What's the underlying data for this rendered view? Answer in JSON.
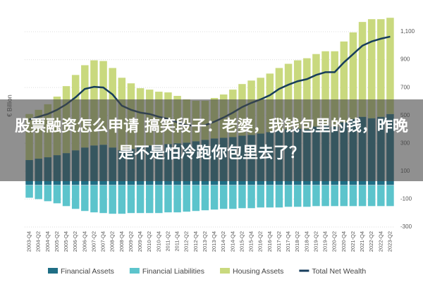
{
  "chart_data": {
    "type": "bar",
    "y_label": "€ Billion",
    "categories": [
      "2003-Q4",
      "2004-Q2",
      "2004-Q4",
      "2005-Q2",
      "2005-Q4",
      "2006-Q2",
      "2006-Q4",
      "2007-Q2",
      "2007-Q4",
      "2008-Q2",
      "2008-Q4",
      "2009-Q2",
      "2009-Q4",
      "2010-Q2",
      "2010-Q4",
      "2011-Q2",
      "2011-Q4",
      "2012-Q2",
      "2012-Q4",
      "2013-Q2",
      "2013-Q4",
      "2014-Q2",
      "2014-Q4",
      "2015-Q2",
      "2015-Q4",
      "2016-Q2",
      "2016-Q4",
      "2017-Q2",
      "2017-Q4",
      "2018-Q2",
      "2018-Q4",
      "2019-Q2",
      "2019-Q4",
      "2020-Q2",
      "2020-Q4",
      "2021-Q2",
      "2021-Q4",
      "2022-Q2",
      "2022-Q4",
      "2023-Q2"
    ],
    "series": [
      {
        "name": "Financial Assets",
        "color": "#1f6e85",
        "type": "bar",
        "values": [
          180,
          190,
          200,
          215,
          230,
          250,
          270,
          285,
          290,
          270,
          250,
          260,
          275,
          285,
          290,
          295,
          300,
          305,
          315,
          325,
          335,
          340,
          345,
          355,
          360,
          370,
          380,
          390,
          400,
          405,
          400,
          420,
          430,
          420,
          450,
          475,
          490,
          480,
          490,
          510
        ]
      },
      {
        "name": "Financial Liabilities",
        "color": "#5cc4cc",
        "type": "bar",
        "values": [
          -90,
          -100,
          -115,
          -130,
          -150,
          -170,
          -185,
          -195,
          -200,
          -205,
          -205,
          -200,
          -200,
          -200,
          -200,
          -195,
          -195,
          -190,
          -185,
          -180,
          -175,
          -170,
          -170,
          -165,
          -165,
          -160,
          -160,
          -160,
          -155,
          -155,
          -155,
          -150,
          -150,
          -150,
          -150,
          -150,
          -150,
          -150,
          -150,
          -150
        ]
      },
      {
        "name": "Housing Assets",
        "color": "#c9d97e",
        "type": "bar",
        "values": [
          330,
          350,
          380,
          420,
          480,
          540,
          590,
          610,
          600,
          570,
          520,
          470,
          420,
          400,
          380,
          370,
          340,
          310,
          290,
          280,
          290,
          310,
          340,
          370,
          390,
          400,
          420,
          450,
          470,
          490,
          510,
          520,
          530,
          540,
          580,
          620,
          680,
          710,
          700,
          690
        ]
      },
      {
        "name": "Total Net Wealth",
        "color": "#173d5c",
        "type": "line",
        "values": [
          470,
          490,
          510,
          540,
          580,
          630,
          690,
          705,
          700,
          650,
          570,
          540,
          520,
          510,
          490,
          475,
          450,
          430,
          425,
          430,
          455,
          485,
          520,
          560,
          590,
          615,
          645,
          690,
          720,
          745,
          760,
          790,
          810,
          810,
          880,
          940,
          1000,
          1030,
          1050,
          1065
        ]
      }
    ],
    "ylim": [
      -300,
      1100
    ],
    "yticks": [
      -300,
      -100,
      100,
      300,
      500,
      700,
      900,
      {
        "value": 1100,
        "label": "1,100"
      }
    ],
    "grid": true
  },
  "overlay": {
    "text": "股票融资怎么申请 搞笑段子：老婆，我钱包里的钱，昨晚是不是怕冷跑你包里去了？"
  }
}
